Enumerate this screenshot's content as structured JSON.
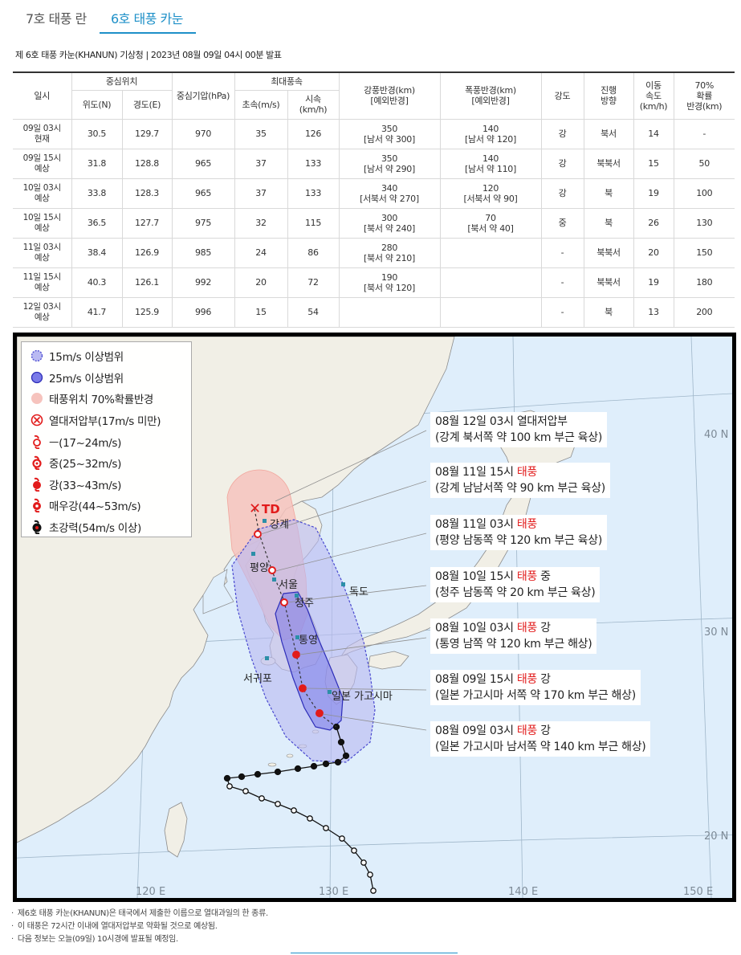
{
  "tabs": [
    {
      "label": "7호 태풍 란"
    },
    {
      "label": "6호 태풍 카눈"
    }
  ],
  "notice": "제 6호 태풍 카눈(KHANUN) 기상청 | 2023년 08월 09일 04시 00분 발표",
  "table": {
    "headers": {
      "datetime": "일시",
      "center": "중심위치",
      "lat": "위도(N)",
      "lon": "경도(E)",
      "pressure": "중심기압(hPa)",
      "maxwind": "최대풍속",
      "ms": "초속(m/s)",
      "kmh1": "시속",
      "kmh2": "(km/h)",
      "strong_r1": "강풍반경(km)",
      "strong_r2": "[예외반경]",
      "storm_r1": "폭풍반경(km)",
      "storm_r2": "[예외반경]",
      "intensity": "강도",
      "direction1": "진행",
      "direction2": "방향",
      "speed1": "이동",
      "speed2": "속도",
      "speed3": "(km/h)",
      "prob1": "70%",
      "prob2": "확률",
      "prob3": "반경(km)"
    },
    "rows": [
      {
        "d1": "09일 03시",
        "d2": "현재",
        "lat": "30.5",
        "lon": "129.7",
        "pressure": "970",
        "ms": "35",
        "kmh": "126",
        "strong1": "350",
        "strong2": "[남서 약 300]",
        "storm1": "140",
        "storm2": "[남서 약 120]",
        "intensity": "강",
        "direction": "북서",
        "speed": "14",
        "prob": "-"
      },
      {
        "d1": "09일 15시",
        "d2": "예상",
        "lat": "31.8",
        "lon": "128.8",
        "pressure": "965",
        "ms": "37",
        "kmh": "133",
        "strong1": "350",
        "strong2": "[남서 약 290]",
        "storm1": "140",
        "storm2": "[남서 약 110]",
        "intensity": "강",
        "direction": "북북서",
        "speed": "15",
        "prob": "50"
      },
      {
        "d1": "10일 03시",
        "d2": "예상",
        "lat": "33.8",
        "lon": "128.3",
        "pressure": "965",
        "ms": "37",
        "kmh": "133",
        "strong1": "340",
        "strong2": "[서북서 약 270]",
        "storm1": "120",
        "storm2": "[서북서 약 90]",
        "intensity": "강",
        "direction": "북",
        "speed": "19",
        "prob": "100"
      },
      {
        "d1": "10일 15시",
        "d2": "예상",
        "lat": "36.5",
        "lon": "127.7",
        "pressure": "975",
        "ms": "32",
        "kmh": "115",
        "strong1": "300",
        "strong2": "[북서 약 240]",
        "storm1": "70",
        "storm2": "[북서 약 40]",
        "intensity": "중",
        "direction": "북",
        "speed": "26",
        "prob": "130"
      },
      {
        "d1": "11일 03시",
        "d2": "예상",
        "lat": "38.4",
        "lon": "126.9",
        "pressure": "985",
        "ms": "24",
        "kmh": "86",
        "strong1": "280",
        "strong2": "[북서 약 210]",
        "storm1": "",
        "storm2": "",
        "intensity": "-",
        "direction": "북북서",
        "speed": "20",
        "prob": "150"
      },
      {
        "d1": "11일 15시",
        "d2": "예상",
        "lat": "40.3",
        "lon": "126.1",
        "pressure": "992",
        "ms": "20",
        "kmh": "72",
        "strong1": "190",
        "strong2": "[북서 약 120]",
        "storm1": "",
        "storm2": "",
        "intensity": "-",
        "direction": "북북서",
        "speed": "19",
        "prob": "180"
      },
      {
        "d1": "12일 03시",
        "d2": "예상",
        "lat": "41.7",
        "lon": "125.9",
        "pressure": "996",
        "ms": "15",
        "kmh": "54",
        "strong1": "",
        "strong2": "",
        "storm1": "",
        "storm2": "",
        "intensity": "-",
        "direction": "북",
        "speed": "13",
        "prob": "200"
      }
    ]
  },
  "legend": [
    {
      "label": "15m/s 이상범위",
      "icon": "light-blue-circle-icon"
    },
    {
      "label": "25m/s 이상범위",
      "icon": "blue-circle-icon"
    },
    {
      "label": "태풍위치 70%확률반경",
      "icon": "pink-circle-icon"
    },
    {
      "label": "열대저압부(17m/s 미만)",
      "icon": "td-symbol-icon"
    },
    {
      "label": "ㅡ(17~24m/s)",
      "icon": "weak-typhoon-icon"
    },
    {
      "label": "중(25~32m/s)",
      "icon": "medium-typhoon-icon"
    },
    {
      "label": "강(33~43m/s)",
      "icon": "strong-typhoon-icon"
    },
    {
      "label": "매우강(44~53m/s)",
      "icon": "very-strong-typhoon-icon"
    },
    {
      "label": "초강력(54m/s 이상)",
      "icon": "super-strong-typhoon-icon"
    }
  ],
  "annotations": [
    {
      "line1": "08월 12일 03시 열대저압부",
      "line1_red": "",
      "line1_after": "",
      "line2": "(강계 북서쪽 약 100 km 부근 육상)"
    },
    {
      "line1": "08월 11일 15시 ",
      "line1_red": "태풍",
      "line1_after": "",
      "line2": "(강계 남남서쪽 약 90 km 부근 육상)"
    },
    {
      "line1": "08월 11일 03시 ",
      "line1_red": "태풍",
      "line1_after": "",
      "line2": "(평양 남동쪽 약 120 km 부근 육상)"
    },
    {
      "line1": "08월 10일 15시 ",
      "line1_red": "태풍",
      "line1_after": " 중",
      "line2": "(청주 남동쪽 약 20 km 부근 육상)"
    },
    {
      "line1": "08월 10일 03시 ",
      "line1_red": "태풍",
      "line1_after": " 강",
      "line2": "(통영 남쪽 약 120 km 부근 해상)"
    },
    {
      "line1": "08월 09일 15시 ",
      "line1_red": "태풍",
      "line1_after": " 강",
      "line2": "(일본 가고시마 서쪽 약 170 km 부근 해상)"
    },
    {
      "line1": "08월 09일 03시 ",
      "line1_red": "태풍",
      "line1_after": " 강",
      "line2": "(일본 가고시마 남서쪽 약 140 km 부근 해상)"
    }
  ],
  "places": {
    "td": "TD",
    "ganggye": "강계",
    "pyongyang": "평양",
    "seoul": "서울",
    "cheongju": "청주",
    "dokdo": "독도",
    "tongyeong": "통영",
    "seogwipo": "서귀포",
    "kagoshima": "일본 가고시마"
  },
  "grid_labels": {
    "lat40": "40 N",
    "lat30": "30 N",
    "lat20": "20 N",
    "lon120": "120 E",
    "lon130": "130 E",
    "lon140": "140 E",
    "lon150": "150 E"
  },
  "footnotes": [
    "제6호 태풍 카눈(KHANUN)은 태국에서 제출한 이름으로 열대과일의 한 종류.",
    "이 태풍은 72시간 이내에 열대저압부로 약화될 것으로 예상됨.",
    "다음 정보는 오늘(09일) 10시경에 발표될 예정임."
  ],
  "colors": {
    "accent": "#1e90c8",
    "land": "#f1efe6",
    "sea": "#dfeefb",
    "range15": "#b9b9f2",
    "range25": "#7a7ae8",
    "prob70": "#f6c3bd",
    "typhoon_red": "#e21b1b"
  }
}
